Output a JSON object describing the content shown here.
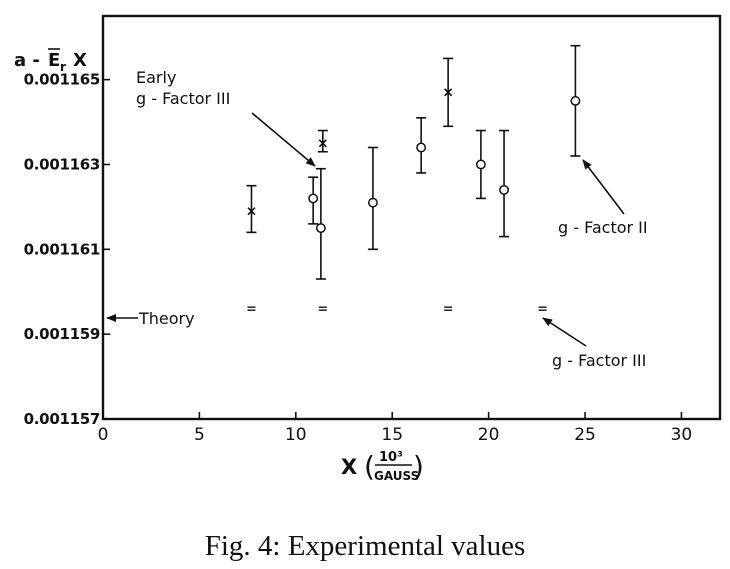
{
  "caption": "Fig. 4: Experimental values",
  "chart_data": {
    "type": "scatter",
    "title": "",
    "ylabel": "a - Ē_r X",
    "xlabel_main": "X",
    "xlabel_unit_num": "10³",
    "xlabel_unit_den": "GAUSS",
    "xlim": [
      0,
      32
    ],
    "ylim": [
      0.001157,
      0.0011665
    ],
    "x_ticks": [
      0,
      5,
      10,
      15,
      20,
      25,
      30
    ],
    "x_tick_labels": [
      "0",
      "5",
      "10",
      "15",
      "20",
      "25",
      "30"
    ],
    "y_ticks": [
      0.001157,
      0.001159,
      0.001161,
      0.001163,
      0.001165
    ],
    "y_tick_labels": [
      "0.001157",
      "0.001159",
      "0.001161",
      "0.001163",
      "0.001165"
    ],
    "series": [
      {
        "marker": "circle",
        "points": [
          {
            "x": 10.9,
            "y": 0.0011622,
            "y_low": 0.0011616,
            "y_high": 0.0011627
          },
          {
            "x": 11.3,
            "y": 0.0011615,
            "y_low": 0.0011603,
            "y_high": 0.0011629
          },
          {
            "x": 14.0,
            "y": 0.0011621,
            "y_low": 0.001161,
            "y_high": 0.0011634
          },
          {
            "x": 16.5,
            "y": 0.0011634,
            "y_low": 0.0011628,
            "y_high": 0.0011641
          },
          {
            "x": 19.6,
            "y": 0.001163,
            "y_low": 0.0011622,
            "y_high": 0.0011638
          },
          {
            "x": 20.8,
            "y": 0.0011624,
            "y_low": 0.0011613,
            "y_high": 0.0011638
          },
          {
            "x": 24.5,
            "y": 0.0011645,
            "y_low": 0.0011632,
            "y_high": 0.0011658
          }
        ]
      },
      {
        "marker": "x",
        "points": [
          {
            "x": 7.7,
            "y": 0.0011619,
            "y_low": 0.0011614,
            "y_high": 0.0011625
          },
          {
            "x": 11.4,
            "y": 0.0011635,
            "y_low": 0.0011633,
            "y_high": 0.0011638
          },
          {
            "x": 17.9,
            "y": 0.0011647,
            "y_low": 0.0011639,
            "y_high": 0.0011655
          }
        ]
      },
      {
        "marker": "dash",
        "points": [
          {
            "x": 7.7,
            "y": 0.0011596
          },
          {
            "x": 11.4,
            "y": 0.0011596
          },
          {
            "x": 17.9,
            "y": 0.0011596
          },
          {
            "x": 22.8,
            "y": 0.0011596
          }
        ]
      }
    ],
    "annotations": [
      {
        "lines": [
          "Early",
          "g - Factor III"
        ],
        "points_to": {
          "x": 11.2,
          "y": 0.0011635
        }
      },
      {
        "lines": [
          "g - Factor II"
        ],
        "points_to": {
          "x": 24.6,
          "y": 0.0011643
        }
      },
      {
        "lines": [
          "g - Factor III"
        ],
        "points_to": {
          "x": 22.8,
          "y": 0.0011596
        }
      },
      {
        "lines": [
          "Theory"
        ],
        "points_to": {
          "x": 0.2,
          "y": 0.0011596
        }
      }
    ]
  }
}
